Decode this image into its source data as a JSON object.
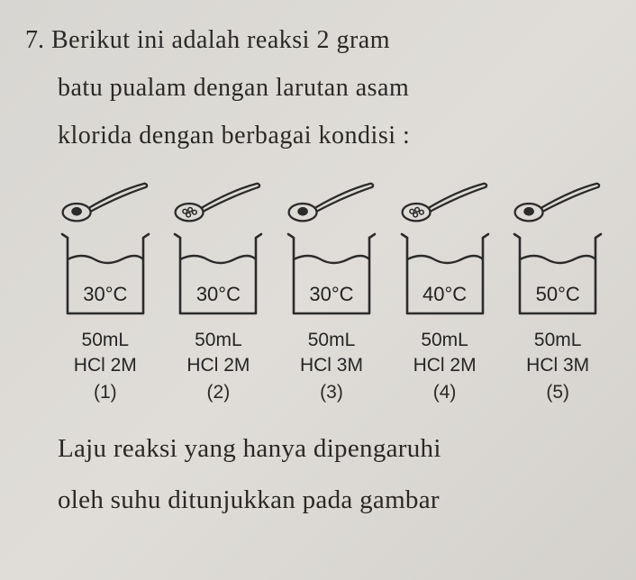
{
  "question": {
    "number": "7.",
    "line1": "Berikut ini adalah reaksi 2 gram",
    "line2": "batu pualam dengan larutan asam",
    "line3": "klorida dengan berbagai kondisi :"
  },
  "experiments": [
    {
      "sample": "lump",
      "temp": "30°C",
      "vol": "50mL",
      "conc": "HCl 2M",
      "idx": "(1)"
    },
    {
      "sample": "granules",
      "temp": "30°C",
      "vol": "50mL",
      "conc": "HCl 2M",
      "idx": "(2)"
    },
    {
      "sample": "lump",
      "temp": "30°C",
      "vol": "50mL",
      "conc": "HCl 3M",
      "idx": "(3)"
    },
    {
      "sample": "granules",
      "temp": "40°C",
      "vol": "50mL",
      "conc": "HCl 2M",
      "idx": "(4)"
    },
    {
      "sample": "lump",
      "temp": "50°C",
      "vol": "50mL",
      "conc": "HCl 3M",
      "idx": "(5)"
    }
  ],
  "footer": {
    "line1": "Laju reaksi yang hanya dipengaruhi",
    "line2": "oleh suhu ditunjukkan pada gambar"
  },
  "colors": {
    "stroke": "#2b2b2b",
    "fill_dark": "#2b2b2b"
  }
}
